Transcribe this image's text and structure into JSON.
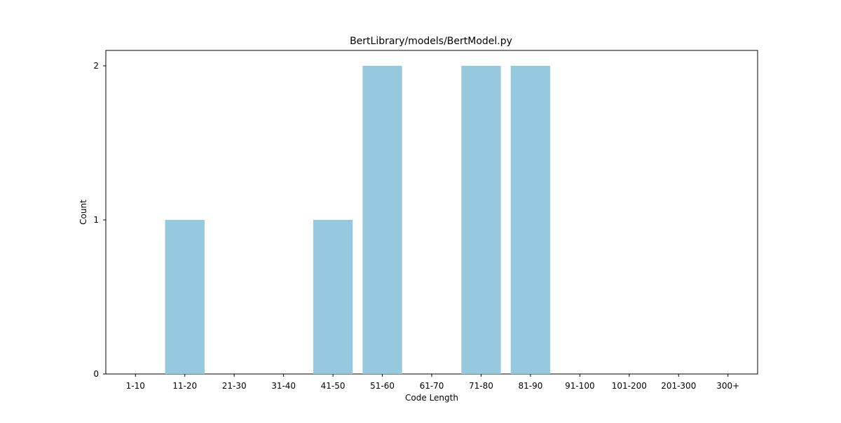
{
  "chart_data": {
    "type": "bar",
    "title": "BertLibrary/models/BertModel.py",
    "xlabel": "Code Length",
    "ylabel": "Count",
    "categories": [
      "1-10",
      "11-20",
      "21-30",
      "31-40",
      "41-50",
      "51-60",
      "61-70",
      "71-80",
      "81-90",
      "91-100",
      "101-200",
      "201-300",
      "300+"
    ],
    "values": [
      0,
      1,
      0,
      0,
      1,
      2,
      0,
      2,
      2,
      0,
      0,
      0,
      0
    ],
    "yticks": [
      0,
      1,
      2
    ],
    "ylim": [
      0,
      2.1
    ],
    "grid": false,
    "legend": "none",
    "bar_color": "#96c9dd",
    "axis_color": "#000000"
  }
}
